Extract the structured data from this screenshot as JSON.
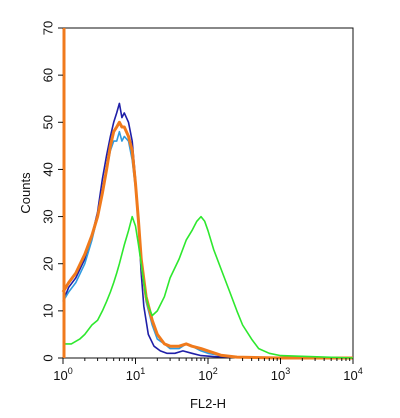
{
  "chart_data": {
    "type": "line",
    "subtype": "flow-cytometry-histogram",
    "title": "",
    "xlabel": "FL2-H",
    "ylabel": "Counts",
    "x_scale": "log",
    "xlim": [
      1,
      10000
    ],
    "ylim": [
      0,
      70
    ],
    "x_ticks": [
      {
        "value": 1,
        "base": "10",
        "exp": "0"
      },
      {
        "value": 10,
        "base": "10",
        "exp": "1"
      },
      {
        "value": 100,
        "base": "10",
        "exp": "2"
      },
      {
        "value": 1000,
        "base": "10",
        "exp": "3"
      },
      {
        "value": 10000,
        "base": "10",
        "exp": "4"
      }
    ],
    "y_ticks": [
      "0",
      "10",
      "20",
      "30",
      "40",
      "50",
      "60",
      "70"
    ],
    "grid": false,
    "legend": false,
    "series": [
      {
        "color": "#1f1fa8",
        "x": [
          1,
          1.2,
          1.5,
          2,
          2.5,
          3,
          3.5,
          4,
          4.5,
          5,
          5.5,
          6,
          6.5,
          7,
          8,
          9,
          10,
          11,
          12,
          13,
          15,
          18,
          22,
          27,
          35,
          45,
          60,
          80,
          120,
          200,
          400,
          1000,
          10000
        ],
        "y": [
          12,
          15,
          17,
          21,
          26,
          31,
          38,
          43,
          47,
          50,
          52,
          54,
          51,
          52,
          50,
          46,
          38,
          28,
          18,
          11,
          5,
          2.5,
          1.5,
          1,
          1,
          1.5,
          1,
          0.5,
          0.3,
          0.2,
          0.1,
          0,
          0
        ]
      },
      {
        "color": "#2f9be0",
        "x": [
          1,
          1.2,
          1.5,
          2,
          2.5,
          3,
          3.5,
          4,
          4.5,
          5,
          5.5,
          6,
          6.5,
          7,
          8,
          9,
          10,
          11,
          12,
          14,
          17,
          20,
          25,
          30,
          40,
          50,
          60,
          80,
          100,
          150,
          250,
          1000,
          10000
        ],
        "y": [
          12,
          14,
          16,
          20,
          25,
          30,
          35,
          40,
          44,
          46,
          46,
          48,
          46,
          47,
          46,
          42,
          36,
          28,
          20,
          12,
          7,
          4,
          3,
          2,
          2,
          3,
          2.5,
          1.5,
          1,
          0.5,
          0.2,
          0,
          0
        ]
      },
      {
        "color": "#f07a1c",
        "x": [
          1,
          1.2,
          1.5,
          2,
          2.5,
          3,
          3.5,
          4,
          4.5,
          5,
          5.5,
          6,
          6.5,
          7,
          8,
          9,
          10,
          11,
          12,
          14,
          17,
          20,
          25,
          30,
          40,
          50,
          60,
          80,
          100,
          150,
          250,
          1000,
          10000
        ],
        "y": [
          14,
          16,
          18,
          22,
          26,
          30,
          35,
          40,
          45,
          48,
          49,
          50,
          49,
          49,
          47,
          44,
          37,
          29,
          21,
          13,
          8,
          5,
          3,
          2.5,
          2.5,
          3,
          2.5,
          2,
          1.5,
          0.6,
          0.2,
          0,
          0
        ]
      },
      {
        "color": "#2ee82e",
        "x": [
          1,
          1.3,
          1.7,
          2,
          2.5,
          3,
          3.5,
          4,
          4.5,
          5,
          5.5,
          6,
          7,
          8,
          9,
          10,
          11,
          12,
          13,
          14,
          15,
          17,
          20,
          25,
          30,
          40,
          50,
          60,
          70,
          80,
          90,
          100,
          120,
          150,
          200,
          250,
          300,
          400,
          500,
          700,
          1000,
          10000
        ],
        "y": [
          3,
          3,
          4,
          5,
          7,
          8,
          10,
          12,
          14,
          16,
          18,
          20,
          24,
          27,
          30,
          28,
          24,
          20,
          16,
          13,
          11,
          9,
          10,
          13,
          17,
          21,
          25,
          27,
          29,
          30,
          29,
          27,
          23,
          19,
          14,
          10,
          7,
          4,
          2,
          1,
          0.5,
          0
        ]
      }
    ],
    "series_initial_spike": {
      "color": "#f07a1c",
      "x": 1,
      "y": 70
    }
  }
}
